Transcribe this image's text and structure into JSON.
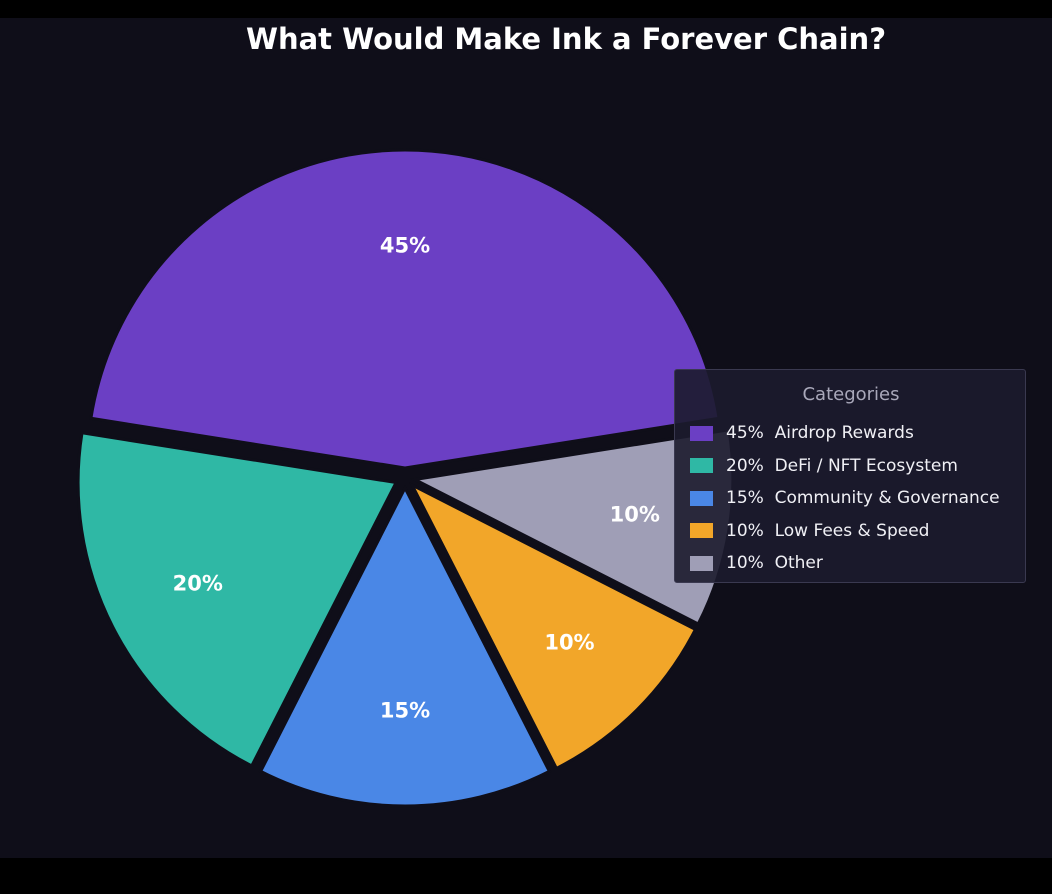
{
  "chart_data": {
    "type": "pie",
    "title": "What Would Make Ink a Forever Chain?",
    "legend": {
      "title": "Categories",
      "placement": "right",
      "entries": [
        "45%  Airdrop Rewards",
        "20%  DeFi / NFT Ecosystem",
        "15%  Community & Governance",
        "10%  Low Fees & Speed",
        "10%  Other"
      ]
    },
    "slices": [
      {
        "name": "Airdrop Rewards",
        "value": 45,
        "label": "45%",
        "color": "#6b3fc4"
      },
      {
        "name": "DeFi / NFT Ecosystem",
        "value": 20,
        "label": "20%",
        "color": "#2fb8a5"
      },
      {
        "name": "Community & Governance",
        "value": 15,
        "label": "15%",
        "color": "#4a87e6"
      },
      {
        "name": "Low Fees & Speed",
        "value": 10,
        "label": "10%",
        "color": "#f2a629"
      },
      {
        "name": "Other",
        "value": 10,
        "label": "10%",
        "color": "#9f9eb6"
      }
    ]
  }
}
